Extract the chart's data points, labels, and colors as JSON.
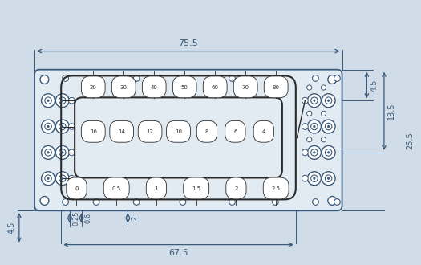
{
  "bg_color": "#d0dce8",
  "chip_color": "#e2eaf2",
  "line_color": "#3a5a7a",
  "dim_color": "#3a5a7a",
  "channel_color": "#2a2a2a",
  "dim_75_5": "75.5",
  "dim_67_5": "67.5",
  "dim_4_5_left": "4.5",
  "dim_0_25": "0.25",
  "dim_0_6": "0.6",
  "dim_2": "2",
  "dim_4_5_right": "4.5",
  "dim_13_5": "13.5",
  "dim_25_5": "25.5",
  "top_labels": [
    "20",
    "30",
    "40",
    "50",
    "60",
    "70",
    "80"
  ],
  "mid_labels": [
    "16",
    "14",
    "12",
    "10",
    "8",
    "6",
    "4"
  ],
  "bot_labels": [
    "0",
    "0.5",
    "1",
    "1.5",
    "2",
    "2.5"
  ]
}
